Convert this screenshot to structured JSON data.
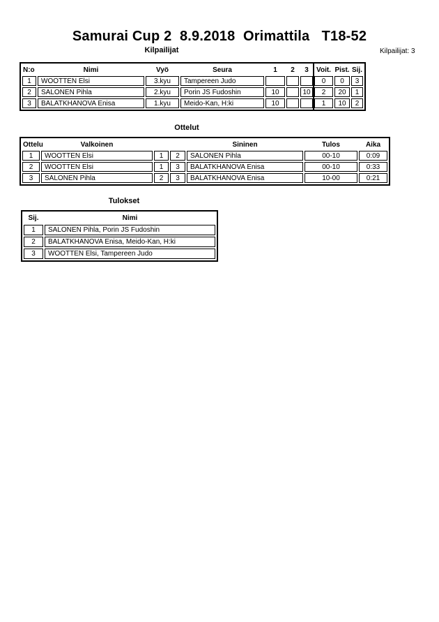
{
  "page": {
    "title": "Samurai Cup 2  8.9.2018  Orimattila   T18-52",
    "competitors_count_label": "Kilpailijat: 3"
  },
  "colors": {
    "text": "#000000",
    "border": "#000000",
    "background": "#ffffff"
  },
  "kilpailijat": {
    "section_title": "Kilpailijat",
    "headers": {
      "no": "N:o",
      "nimi": "Nimi",
      "vyo": "Vyö",
      "seura": "Seura",
      "r1": "1",
      "r2": "2",
      "r3": "3",
      "voit": "Voit.",
      "pist": "Pist.",
      "sij": "Sij."
    },
    "rows": [
      {
        "no": "1",
        "nimi": "WOOTTEN Elsi",
        "vyo": "3.kyu",
        "seura": "Tampereen Judo",
        "r1": "",
        "r2": "",
        "r3": "",
        "voit": "0",
        "pist": "0",
        "sij": "3"
      },
      {
        "no": "2",
        "nimi": "SALONEN Pihla",
        "vyo": "2.kyu",
        "seura": "Porin JS Fudoshin",
        "r1": "10",
        "r2": "",
        "r3": "10",
        "voit": "2",
        "pist": "20",
        "sij": "1"
      },
      {
        "no": "3",
        "nimi": "BALATKHANOVA Enisa",
        "vyo": "1.kyu",
        "seura": "Meido-Kan, H:ki",
        "r1": "10",
        "r2": "",
        "r3": "",
        "voit": "1",
        "pist": "10",
        "sij": "2"
      }
    ]
  },
  "ottelut": {
    "section_title": "Ottelut",
    "headers": {
      "ottelu": "Ottelu",
      "valkoinen": "Valkoinen",
      "sininen": "Sininen",
      "tulos": "Tulos",
      "aika": "Aika"
    },
    "rows": [
      {
        "no": "1",
        "valkoinen": "WOOTTEN Elsi",
        "wno": "1",
        "bno": "2",
        "sininen": "SALONEN Pihla",
        "tulos": "00-10",
        "aika": "0:09"
      },
      {
        "no": "2",
        "valkoinen": "WOOTTEN Elsi",
        "wno": "1",
        "bno": "3",
        "sininen": "BALATKHANOVA Enisa",
        "tulos": "00-10",
        "aika": "0:33"
      },
      {
        "no": "3",
        "valkoinen": "SALONEN Pihla",
        "wno": "2",
        "bno": "3",
        "sininen": "BALATKHANOVA Enisa",
        "tulos": "10-00",
        "aika": "0:21"
      }
    ]
  },
  "tulokset": {
    "section_title": "Tulokset",
    "headers": {
      "sij": "Sij.",
      "nimi": "Nimi"
    },
    "rows": [
      {
        "sij": "1",
        "nimi": "SALONEN Pihla, Porin JS Fudoshin"
      },
      {
        "sij": "2",
        "nimi": "BALATKHANOVA Enisa, Meido-Kan, H:ki"
      },
      {
        "sij": "3",
        "nimi": "WOOTTEN Elsi, Tampereen Judo"
      }
    ]
  }
}
